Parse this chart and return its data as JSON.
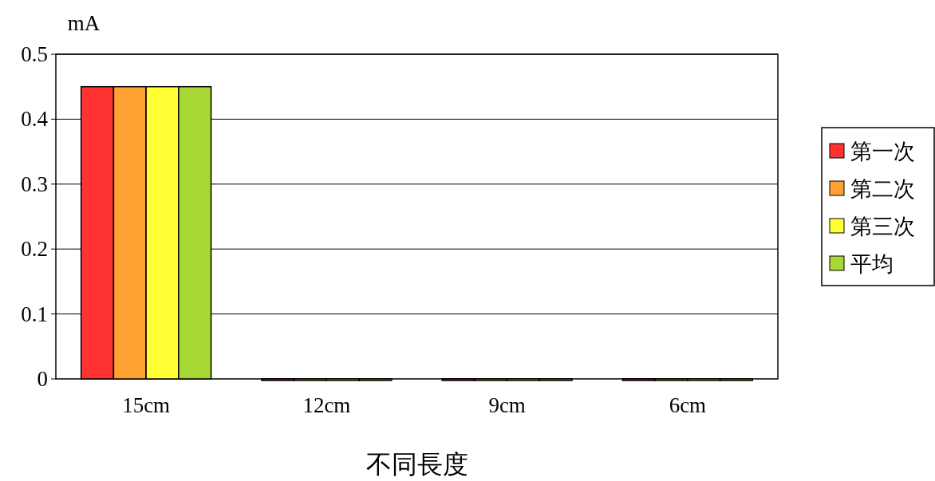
{
  "chart_data": {
    "type": "bar",
    "ylabel": "mA",
    "xlabel": "不同長度",
    "categories": [
      "15cm",
      "12cm",
      "9cm",
      "6cm"
    ],
    "series": [
      {
        "name": "第一次",
        "color": "#ff3333",
        "values": [
          0.45,
          0,
          0,
          0
        ]
      },
      {
        "name": "第二次",
        "color": "#ffa033",
        "values": [
          0.45,
          0,
          0,
          0
        ]
      },
      {
        "name": "第三次",
        "color": "#ffff33",
        "values": [
          0.45,
          0,
          0,
          0
        ]
      },
      {
        "name": "平均",
        "color": "#a8d833",
        "values": [
          0.45,
          0,
          0,
          0
        ]
      }
    ],
    "ylim": [
      0,
      0.5
    ],
    "yticks": [
      0,
      0.1,
      0.2,
      0.3,
      0.4,
      0.5
    ],
    "grid": "y",
    "legend": "right"
  }
}
